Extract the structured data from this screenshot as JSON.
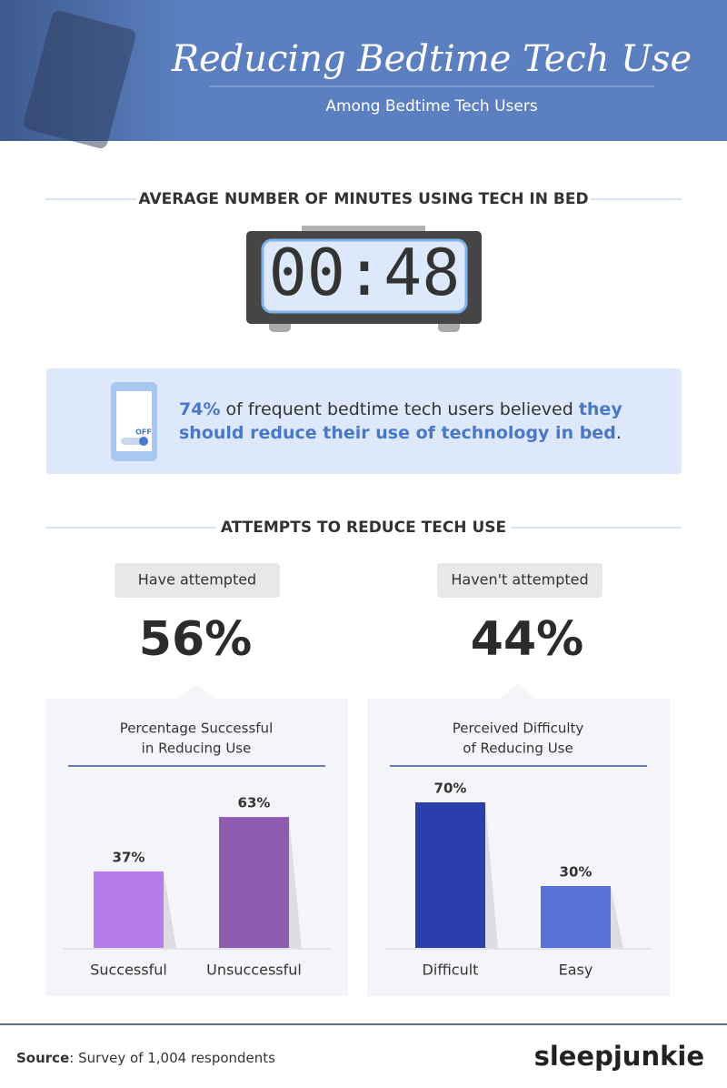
{
  "header": {
    "title": "Reducing Bedtime Tech Use",
    "subtitle": "Among Bedtime Tech Users"
  },
  "clock": {
    "heading": "AVERAGE NUMBER OF MINUTES USING TECH IN BED",
    "display": "00:48"
  },
  "callout": {
    "icon_label": "OFF",
    "segments": [
      "74%",
      " of frequent bedtime tech users believed ",
      "they",
      "should reduce their use of technology in bed",
      "."
    ]
  },
  "attempts": {
    "heading": "ATTEMPTS TO REDUCE TECH USE",
    "groups": [
      {
        "label": "Have attempted",
        "value": "56%"
      },
      {
        "label": "Haven't attempted",
        "value": "44%"
      }
    ]
  },
  "chart_data": [
    {
      "type": "bar",
      "title": [
        "Percentage Successful",
        "in Reducing Use"
      ],
      "categories": [
        "Successful",
        "Unsuccessful"
      ],
      "values": [
        37,
        63
      ],
      "value_labels": [
        "37%",
        "63%"
      ],
      "colors": [
        "#b87ce9",
        "#8e5bb1"
      ]
    },
    {
      "type": "bar",
      "title": [
        "Perceived Difficulty",
        "of Reducing Use"
      ],
      "categories": [
        "Difficult",
        "Easy"
      ],
      "values": [
        70,
        30
      ],
      "value_labels": [
        "70%",
        "30%"
      ],
      "colors": [
        "#2a3fa9",
        "#5672d9"
      ]
    }
  ],
  "footer": {
    "source_label": "Source",
    "source_text": ": Survey of 1,004 respondents",
    "brand": "sleepjunkie"
  }
}
